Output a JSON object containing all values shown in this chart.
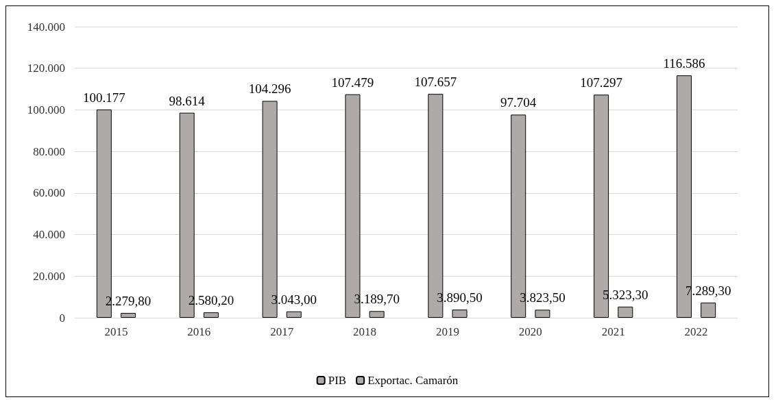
{
  "chart_data": {
    "type": "bar",
    "categories": [
      "2015",
      "2016",
      "2017",
      "2018",
      "2019",
      "2020",
      "2021",
      "2022"
    ],
    "series": [
      {
        "name": "PIB",
        "color": "#aeaaaa",
        "values": [
          100177,
          98614,
          104296,
          107479,
          107657,
          97704,
          107297,
          116586
        ],
        "value_labels": [
          "100.177",
          "98.614",
          "104.296",
          "107.479",
          "107.657",
          "97.704",
          "107.297",
          "116.586"
        ]
      },
      {
        "name": "Exportac. Camarón",
        "color": "#aeaaaa",
        "values": [
          2279.8,
          2580.2,
          3043.0,
          3189.7,
          3890.5,
          3823.5,
          5323.3,
          7289.3
        ],
        "value_labels": [
          "2.279,80",
          "2.580,20",
          "3.043,00",
          "3.189,70",
          "3.890,50",
          "3.823,50",
          "5.323,30",
          "7.289,30"
        ]
      }
    ],
    "ylim": [
      0,
      140000
    ],
    "yticks": [
      0,
      {
        "value": 20000,
        "label": "20.000"
      },
      {
        "value": 40000,
        "label": "40.000"
      },
      {
        "value": 60000,
        "label": "60.000"
      },
      {
        "value": 80000,
        "label": "80.000"
      },
      {
        "value": 100000,
        "label": "100.000"
      },
      {
        "value": 120000,
        "label": "120.000"
      },
      {
        "value": 140000,
        "label": "140.000"
      }
    ],
    "grid": "y",
    "legend": "bottom"
  }
}
